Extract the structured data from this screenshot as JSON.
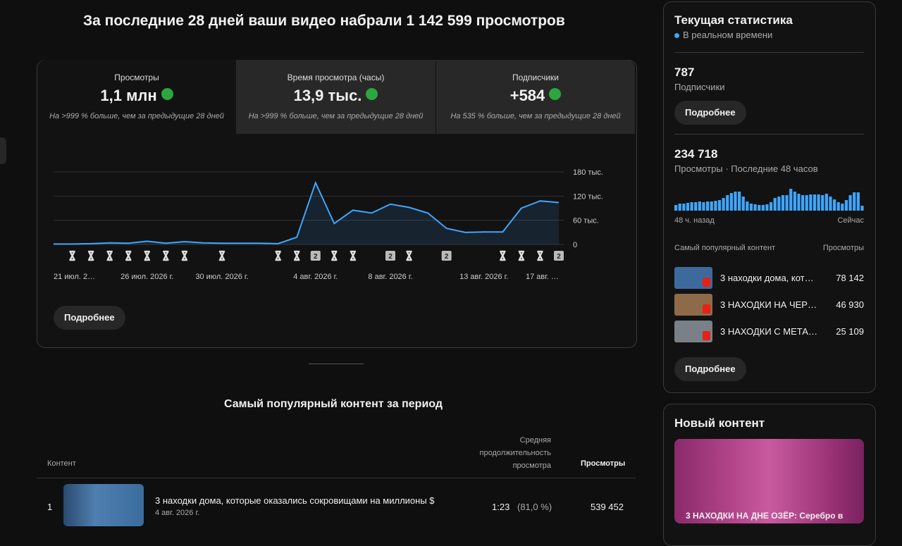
{
  "header": {
    "title": "За последние 28 дней ваши видео набрали 1 142 599 просмотров"
  },
  "metrics": [
    {
      "label": "Просмотры",
      "value": "1,1 млн",
      "note": "На >999 % больше, чем за предыдущие 28 дней"
    },
    {
      "label": "Время просмотра (часы)",
      "value": "13,9 тыс.",
      "note": "На >999 % больше, чем за предыдущие 28 дней"
    },
    {
      "label": "Подписчики",
      "value": "+584",
      "note": "На 535 % больше, чем за предыдущие 28 дней"
    }
  ],
  "chart_data": {
    "type": "line",
    "color": "#3ea6ff",
    "categories": [
      "21 июл. 2…",
      null,
      null,
      null,
      null,
      "26 июл. 2026 г.",
      null,
      null,
      null,
      "30 июл. 2026 г.",
      null,
      null,
      null,
      null,
      "4 авг. 2026 г.",
      null,
      null,
      null,
      "8 авг. 2026 г.",
      null,
      null,
      null,
      null,
      "13 авг. 2026 г.",
      null,
      null,
      null,
      "17 авг. …"
    ],
    "values": [
      1000,
      1000,
      2000,
      4000,
      3000,
      8000,
      3000,
      7000,
      4000,
      3000,
      3000,
      3000,
      2000,
      18000,
      153000,
      52000,
      85000,
      78000,
      100000,
      92000,
      78000,
      40000,
      30000,
      31000,
      31000,
      90000,
      108000,
      104000
    ],
    "ylim": [
      0,
      180000
    ],
    "yticks": [
      0,
      {
        "value": 60000,
        "label": "60 тыс."
      },
      {
        "value": 120000,
        "label": "120 тыс."
      },
      {
        "value": 180000,
        "label": "180 тыс."
      }
    ],
    "grid": true,
    "upload_badges": [
      "2",
      "2",
      "2",
      "2"
    ]
  },
  "details_button": "Подробнее",
  "top_content": {
    "title": "Самый популярный контент за период",
    "columns": [
      "Контент",
      "Средняя продолжительность просмотра",
      "Просмотры"
    ],
    "rows": [
      {
        "rank": "1",
        "title": "3 находки дома, которые оказались сокровищами на миллионы $",
        "date": "4 авг. 2026 г.",
        "duration": "1:23",
        "percent": "(81,0 %)",
        "views": "539 452"
      }
    ]
  },
  "realtime": {
    "title": "Текущая статистика",
    "subtitle": "В реальном времени",
    "subscribers": "787",
    "subscribers_label": "Подписчики",
    "button": "Подробнее",
    "views": "234 718",
    "views_label": "Просмотры · Последние 48 часов",
    "sparkline": {
      "type": "bar",
      "color": "#3ea6ff",
      "values": [
        1600,
        2000,
        2000,
        2200,
        2400,
        2400,
        2600,
        2400,
        2600,
        2600,
        2800,
        3000,
        3600,
        4400,
        5000,
        5400,
        5400,
        4000,
        2600,
        2000,
        1800,
        1600,
        1600,
        1800,
        2400,
        3600,
        4000,
        4400,
        4400,
        6200,
        5400,
        4800,
        4400,
        4400,
        4600,
        4600,
        4600,
        4400,
        4800,
        4000,
        3200,
        2400,
        2000,
        3000,
        4400,
        5200,
        5200,
        1400
      ]
    },
    "axis_start": "48 ч. назад",
    "axis_end": "Сейчас",
    "list_title": "Самый популярный контент",
    "list_col": "Просмотры",
    "items": [
      {
        "title": "3 находки дома, кот…",
        "views": "78 142"
      },
      {
        "title": "3 НАХОДКИ НА ЧЕР…",
        "views": "46 930"
      },
      {
        "title": "3 НАХОДКИ С МЕТА…",
        "views": "25 109"
      }
    ],
    "button2": "Подробнее"
  },
  "new_content": {
    "title": "Новый контент",
    "video_title": "3 НАХОДКИ НА ДНЕ ОЗЁР: Серебро в"
  }
}
